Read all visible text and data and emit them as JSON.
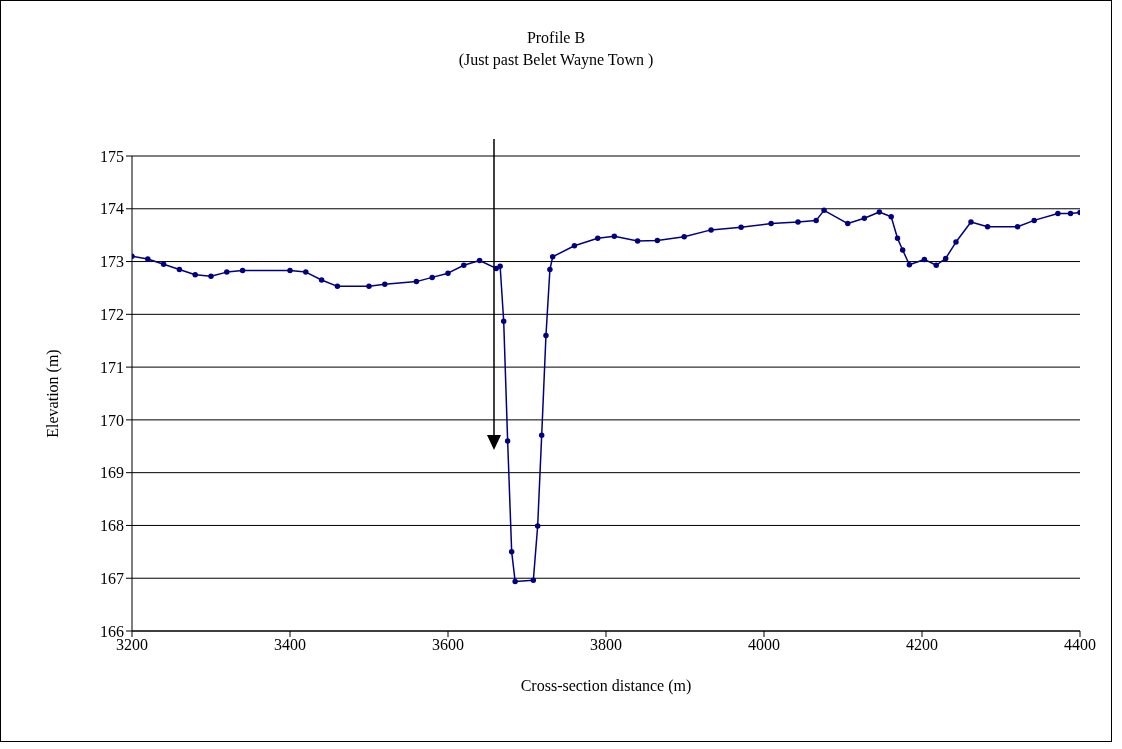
{
  "chart_data": {
    "type": "line",
    "title": "Profile B",
    "subtitle": "(Just past Belet Wayne Town )",
    "xlabel": "Cross-section distance (m)",
    "ylabel": "Elevation (m)",
    "x": [
      3200,
      3220,
      3240,
      3260,
      3280,
      3300,
      3320,
      3340,
      3400,
      3420,
      3440,
      3460,
      3500,
      3520,
      3560,
      3580,
      3600,
      3620,
      3640,
      3661,
      3666,
      3670.5,
      3675.5,
      3680.6,
      3685,
      3708,
      3713.5,
      3718.6,
      3724,
      3729,
      3732.5,
      3760,
      3789.5,
      3810.5,
      3840,
      3865,
      3899,
      3933,
      3971,
      4009,
      4043,
      4066,
      4076,
      4106,
      4127,
      4146,
      4161,
      4169,
      4175.5,
      4184,
      4203,
      4218,
      4230,
      4243,
      4262,
      4283,
      4321,
      4342,
      4372,
      4388,
      4400
    ],
    "series": [
      {
        "color": "#000080",
        "values": [
          173.1,
          173.05,
          172.95,
          172.85,
          172.75,
          172.72,
          172.8,
          172.83,
          172.83,
          172.8,
          172.65,
          172.53,
          172.53,
          172.57,
          172.62,
          172.7,
          172.78,
          172.93,
          173.02,
          172.87,
          172.91,
          171.87,
          169.6,
          167.5,
          166.94,
          166.96,
          167.99,
          169.71,
          171.6,
          172.85,
          173.09,
          173.3,
          173.44,
          173.48,
          173.39,
          173.4,
          173.47,
          173.6,
          173.65,
          173.72,
          173.75,
          173.78,
          173.97,
          173.72,
          173.82,
          173.94,
          173.85,
          173.44,
          173.22,
          172.94,
          173.04,
          172.93,
          173.06,
          173.37,
          173.75,
          173.66,
          173.66,
          173.78,
          173.91,
          173.91,
          173.93
        ]
      }
    ],
    "xlim": [
      3200,
      4400
    ],
    "xticks": [
      3200,
      3400,
      3600,
      3800,
      4000,
      4200,
      4400
    ],
    "ylim": [
      166,
      175
    ],
    "yticks": [
      166,
      167,
      168,
      169,
      170,
      171,
      172,
      173,
      174,
      175
    ],
    "grid": "y",
    "marker": "circle",
    "line_style": "solid"
  }
}
